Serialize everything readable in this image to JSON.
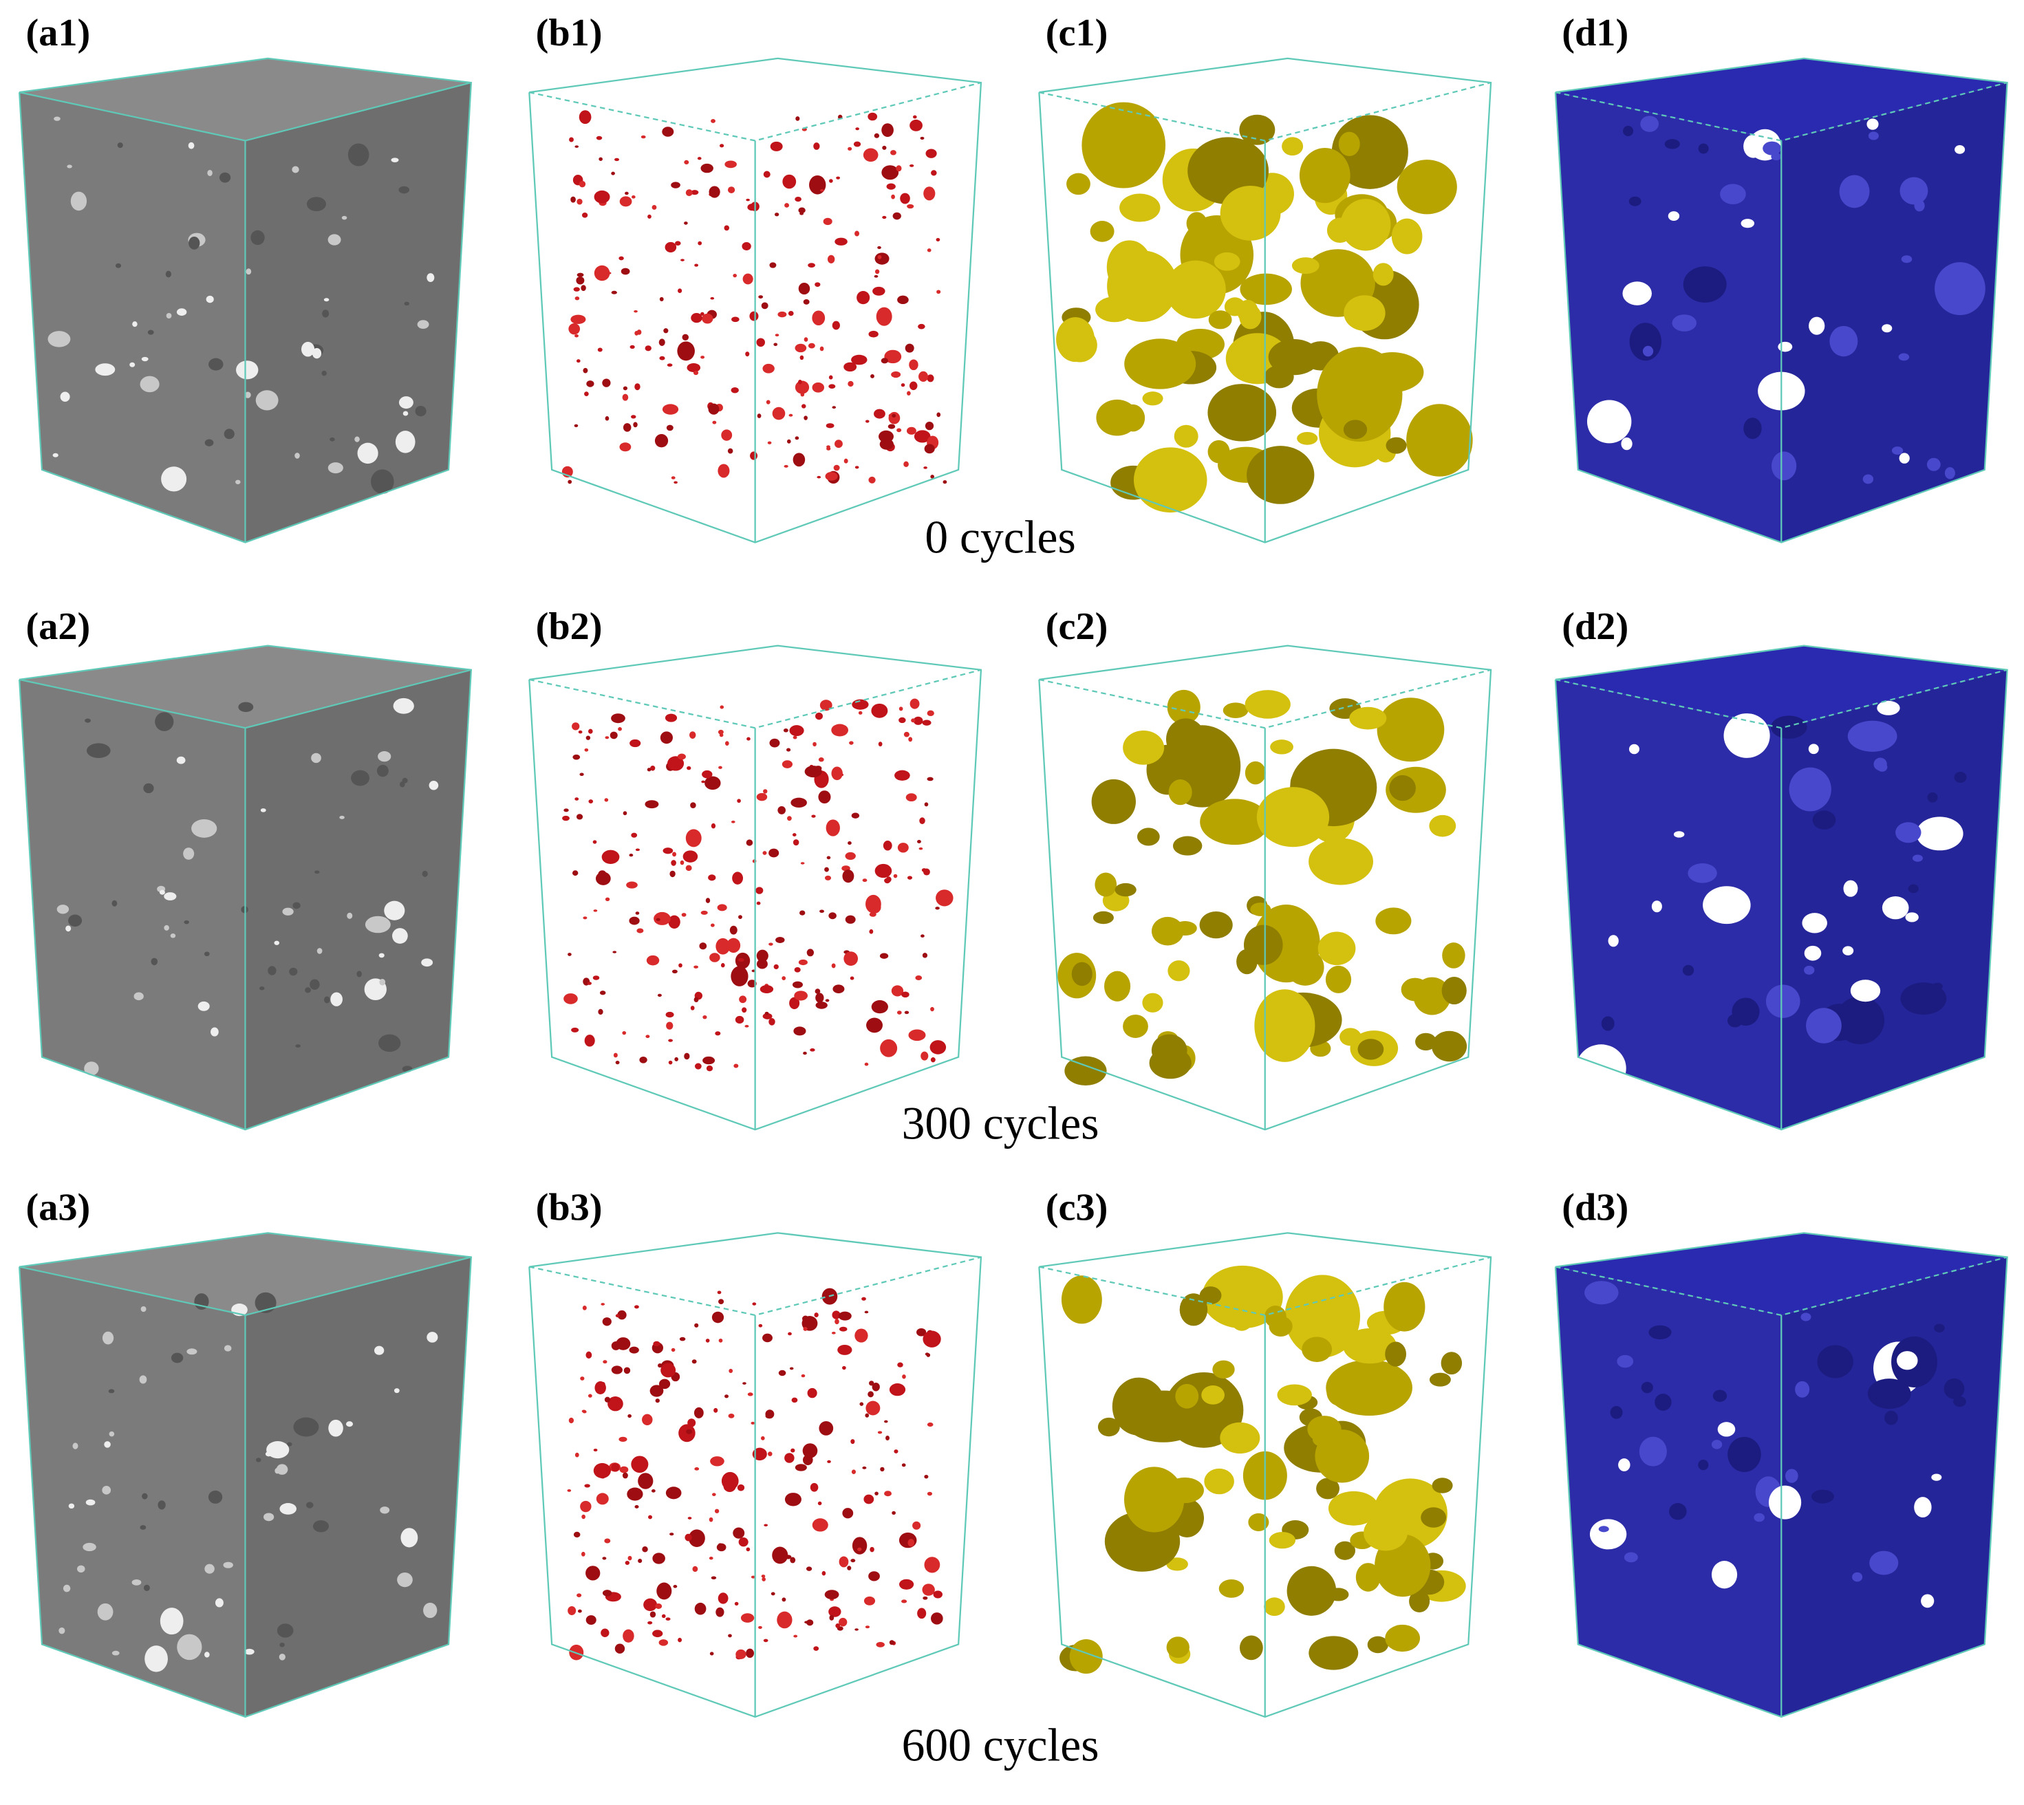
{
  "rows": [
    {
      "caption": "0 cycles",
      "panels": [
        {
          "label": "(a1)"
        },
        {
          "label": "(b1)"
        },
        {
          "label": "(c1)"
        },
        {
          "label": "(d1)"
        }
      ]
    },
    {
      "caption": "300 cycles",
      "panels": [
        {
          "label": "(a2)"
        },
        {
          "label": "(b2)"
        },
        {
          "label": "(c2)"
        },
        {
          "label": "(d2)"
        }
      ]
    },
    {
      "caption": "600 cycles",
      "panels": [
        {
          "label": "(a3)"
        },
        {
          "label": "(b3)"
        },
        {
          "label": "(c3)"
        },
        {
          "label": "(d3)"
        }
      ]
    }
  ]
}
